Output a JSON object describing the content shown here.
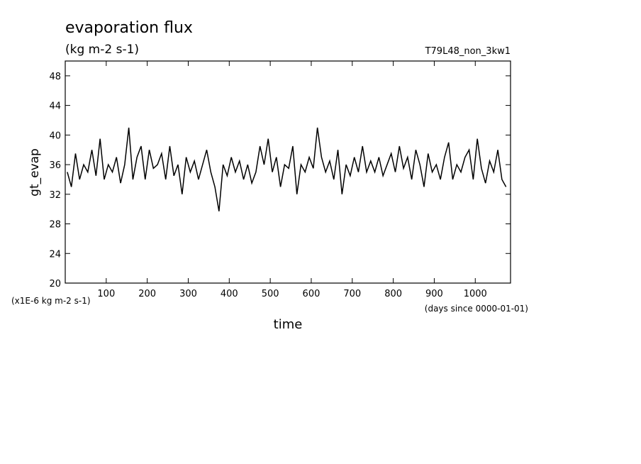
{
  "chart_data": {
    "type": "line",
    "title": "evaporation flux",
    "subtitle": "(kg m-2 s-1)",
    "run_label": "T79L48_non_3kw1",
    "y_label": "gt_evap",
    "x_label": "time",
    "y_scale_note": "(x1E-6 kg m-2 s-1)",
    "x_unit_note": "(days since 0000-01-01)",
    "x": [
      5,
      15,
      25,
      35,
      45,
      55,
      65,
      75,
      85,
      95,
      105,
      115,
      125,
      135,
      145,
      155,
      165,
      175,
      185,
      195,
      205,
      215,
      225,
      235,
      245,
      255,
      265,
      275,
      285,
      295,
      305,
      315,
      325,
      335,
      345,
      355,
      365,
      375,
      385,
      395,
      405,
      415,
      425,
      435,
      445,
      455,
      465,
      475,
      485,
      495,
      505,
      515,
      525,
      535,
      545,
      555,
      565,
      575,
      585,
      595,
      605,
      615,
      625,
      635,
      645,
      655,
      665,
      675,
      685,
      695,
      705,
      715,
      725,
      735,
      745,
      755,
      765,
      775,
      785,
      795,
      805,
      815,
      825,
      835,
      845,
      855,
      865,
      875,
      885,
      895,
      905,
      915,
      925,
      935,
      945,
      955,
      965,
      975,
      985,
      995,
      1005,
      1015,
      1025,
      1035,
      1045,
      1055,
      1065,
      1075
    ],
    "series": [
      {
        "name": "gt_evap",
        "color": "#000000",
        "values": [
          35,
          33,
          37.5,
          34,
          36,
          35,
          38,
          34.5,
          39.5,
          34,
          36,
          35,
          37,
          33.5,
          36,
          41,
          34,
          37,
          38.5,
          34,
          38,
          35.5,
          36,
          37.5,
          34,
          38.5,
          34.5,
          36,
          32,
          37,
          35,
          36.5,
          34,
          36,
          38,
          35,
          33,
          29.7,
          36,
          34.5,
          37,
          35,
          36.5,
          34,
          36,
          33.5,
          35,
          38.5,
          36,
          39.5,
          35,
          37,
          33,
          36,
          35.5,
          38.5,
          32,
          36,
          35,
          37,
          35.5,
          41,
          37,
          35,
          36.5,
          34,
          38,
          32,
          36,
          34.5,
          37,
          35,
          38.5,
          35,
          36.5,
          35,
          37,
          34.5,
          36,
          37.5,
          35,
          38.5,
          35.5,
          37,
          34,
          38,
          36,
          33,
          37.5,
          35,
          36,
          34,
          37,
          39,
          34,
          36,
          35,
          37,
          38,
          34,
          39.5,
          35.5,
          33.5,
          36.5,
          35,
          38,
          34,
          33
        ]
      }
    ],
    "xlim": [
      0,
      1086
    ],
    "ylim": [
      20,
      50
    ],
    "xticks": [
      100,
      200,
      300,
      400,
      500,
      600,
      700,
      800,
      900,
      1000
    ],
    "yticks": [
      20,
      24,
      28,
      32,
      36,
      40,
      44,
      48
    ]
  }
}
